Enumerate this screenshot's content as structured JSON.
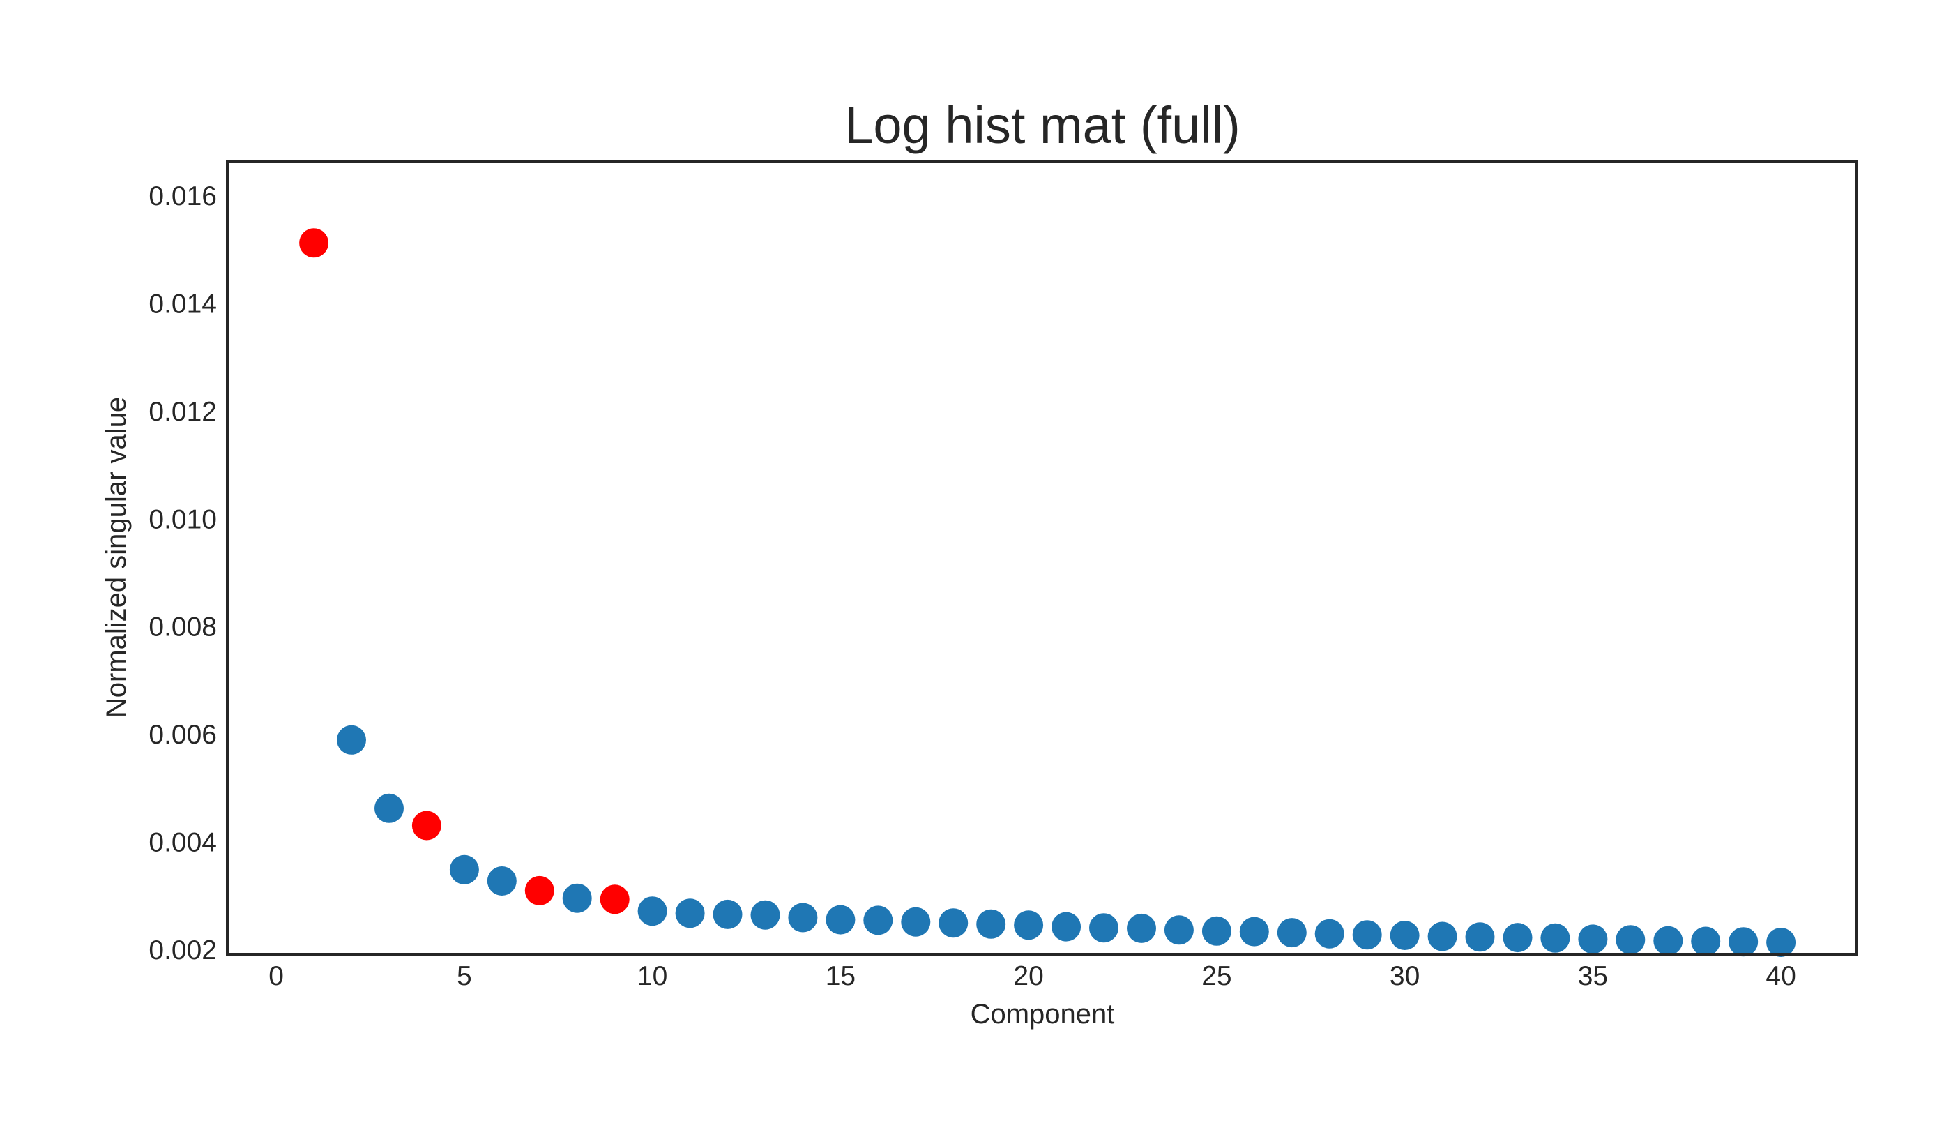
{
  "chart_data": {
    "type": "scatter",
    "title": "Log hist mat (full)",
    "xlabel": "Component",
    "ylabel": "Normalized singular value",
    "xlim": [
      -1.3,
      42
    ],
    "ylim": [
      0.00192,
      0.01665
    ],
    "xticks": [
      0,
      5,
      10,
      15,
      20,
      25,
      30,
      35,
      40
    ],
    "yticks": [
      0.002,
      0.004,
      0.006,
      0.008,
      0.01,
      0.012,
      0.014,
      0.016
    ],
    "ytick_labels": [
      "0.002",
      "0.004",
      "0.006",
      "0.008",
      "0.010",
      "0.012",
      "0.014",
      "0.016"
    ],
    "grid": false,
    "colors": {
      "default": "#1f77b4",
      "highlight": "#ff0000"
    },
    "highlighted_components": [
      1,
      4,
      7,
      9
    ],
    "x": [
      1,
      2,
      3,
      4,
      5,
      6,
      7,
      8,
      9,
      10,
      11,
      12,
      13,
      14,
      15,
      16,
      17,
      18,
      19,
      20,
      21,
      22,
      23,
      24,
      25,
      26,
      27,
      28,
      29,
      30,
      31,
      32,
      33,
      34,
      35,
      36,
      37,
      38,
      39,
      40
    ],
    "y": [
      0.01513,
      0.0059,
      0.00463,
      0.00431,
      0.00349,
      0.00328,
      0.0031,
      0.00296,
      0.00294,
      0.00272,
      0.00268,
      0.00266,
      0.00265,
      0.0026,
      0.00256,
      0.00255,
      0.00252,
      0.0025,
      0.00248,
      0.00246,
      0.00243,
      0.00241,
      0.0024,
      0.00237,
      0.00235,
      0.00234,
      0.00232,
      0.0023,
      0.00228,
      0.00227,
      0.00225,
      0.00224,
      0.00223,
      0.00222,
      0.0022,
      0.00219,
      0.00217,
      0.00216,
      0.00215,
      0.00214
    ]
  }
}
